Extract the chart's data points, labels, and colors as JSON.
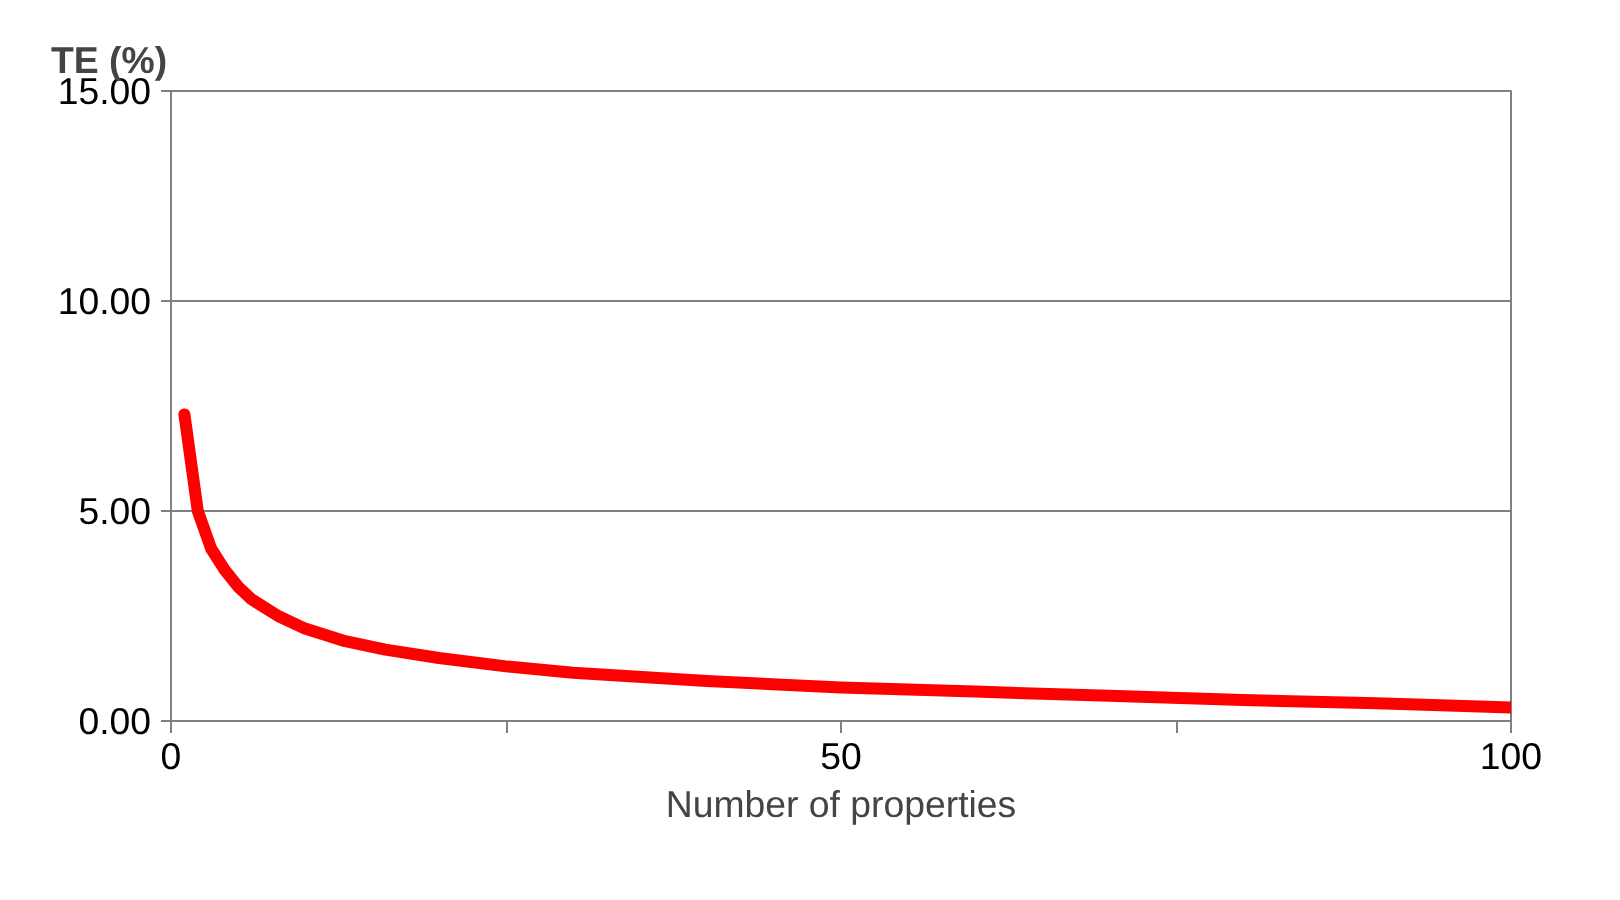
{
  "chart_data": {
    "type": "line",
    "ylabel": "TE (%)",
    "xlabel": "Number of properties",
    "x": [
      1,
      2,
      3,
      4,
      5,
      6,
      8,
      10,
      13,
      16,
      20,
      25,
      30,
      40,
      50,
      60,
      70,
      80,
      90,
      100
    ],
    "series": [
      {
        "color": "#ff0000",
        "values": [
          7.3,
          5.0,
          4.1,
          3.6,
          3.2,
          2.9,
          2.5,
          2.2,
          1.9,
          1.7,
          1.5,
          1.3,
          1.15,
          0.95,
          0.8,
          0.7,
          0.6,
          0.5,
          0.42,
          0.32
        ]
      }
    ],
    "xlim": [
      0,
      100
    ],
    "xticks": [
      0,
      {
        "value": 25,
        "label": null
      },
      50,
      {
        "value": 75,
        "label": null
      },
      100
    ],
    "ylim": [
      0,
      15
    ],
    "yticks": [
      {
        "value": 0,
        "label": "0.00"
      },
      {
        "value": 5,
        "label": "5.00"
      },
      {
        "value": 10,
        "label": "10.00"
      },
      {
        "value": 15,
        "label": "15.00"
      }
    ],
    "grid": "y",
    "marker": "none",
    "line_style": "solid"
  }
}
